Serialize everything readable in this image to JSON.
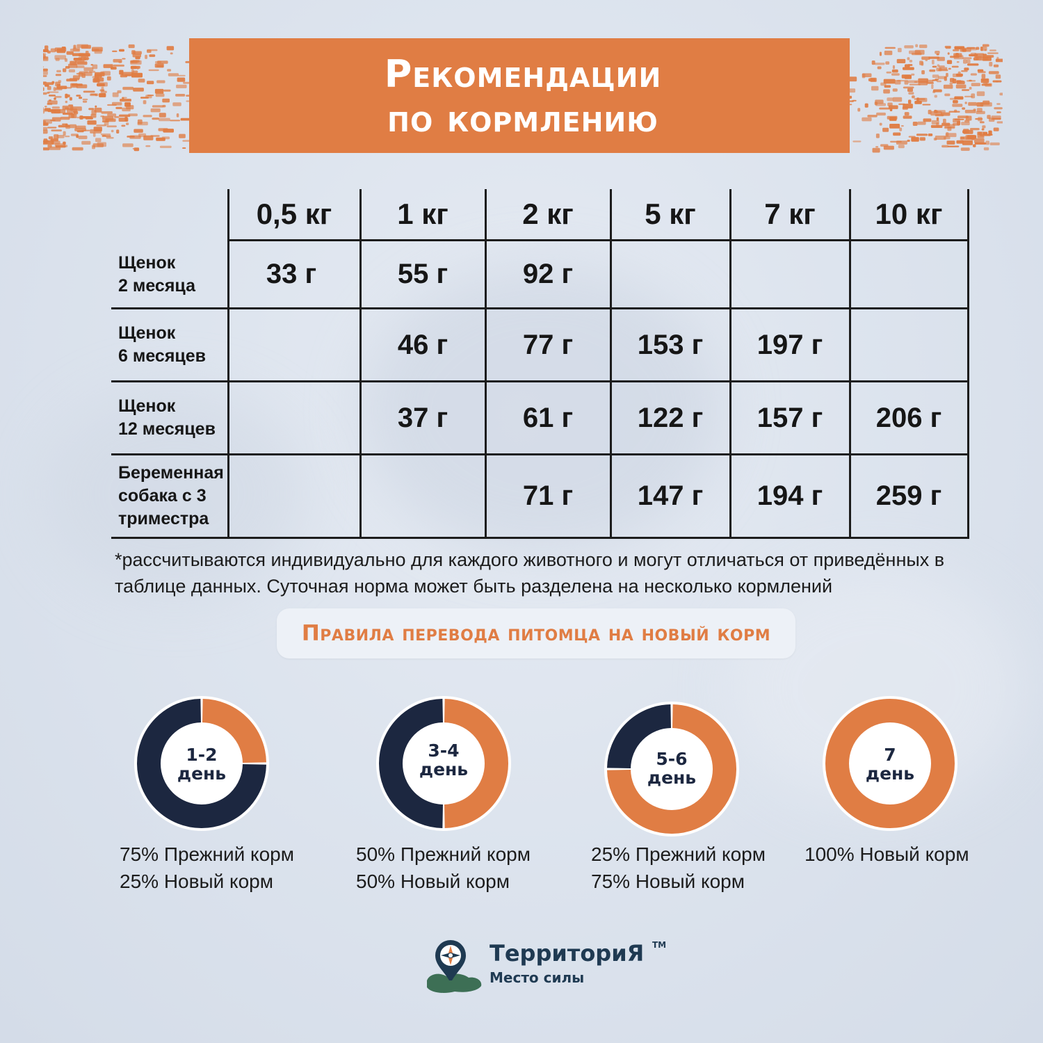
{
  "colors": {
    "orange": "#e07d44",
    "navy": "#1c2740",
    "white": "#ffffff"
  },
  "header": {
    "title": "Рекомендации\nпо кормлению"
  },
  "table": {
    "columns": [
      "0,5 кг",
      "1 кг",
      "2 кг",
      "5 кг",
      "7 кг",
      "10 кг"
    ],
    "rows": [
      {
        "label": "Щенок\n2 месяца",
        "values": [
          "33 г",
          "55 г",
          "92 г",
          "",
          "",
          ""
        ]
      },
      {
        "label": "Щенок\n6 месяцев",
        "values": [
          "",
          "46 г",
          "77 г",
          "153 г",
          "197 г",
          ""
        ]
      },
      {
        "label": "Щенок\n12 месяцев",
        "values": [
          "",
          "37 г",
          "61 г",
          "122 г",
          "157 г",
          "206 г"
        ]
      },
      {
        "label": "Беременная\nсобака с 3\nтриместра",
        "values": [
          "",
          "",
          "71 г",
          "147 г",
          "194 г",
          "259 г"
        ]
      }
    ]
  },
  "footnote": "*рассчитываются индивидуально для каждого животного и могут отличаться от приведённых в таблице данных. Суточная норма может быть разделена на несколько кормлений",
  "rules": {
    "title": "Правила перевода питомца на новый корм",
    "steps": [
      {
        "label": "1-2\nдень",
        "new_share": 25,
        "old_text": "75% Прежний корм",
        "new_text": "25% Новый корм"
      },
      {
        "label": "3-4\nдень",
        "new_share": 50,
        "old_text": "50% Прежний корм",
        "new_text": "50% Новый корм"
      },
      {
        "label": "5-6\nдень",
        "new_share": 75,
        "old_text": "25% Прежний корм",
        "new_text": "75% Новый корм"
      },
      {
        "label": "7\nдень",
        "new_share": 100,
        "old_text": "",
        "new_text": "100% Новый корм"
      }
    ]
  },
  "logo": {
    "name": "ТерриториЯ",
    "tm": "TM",
    "subtitle": "Место силы"
  }
}
